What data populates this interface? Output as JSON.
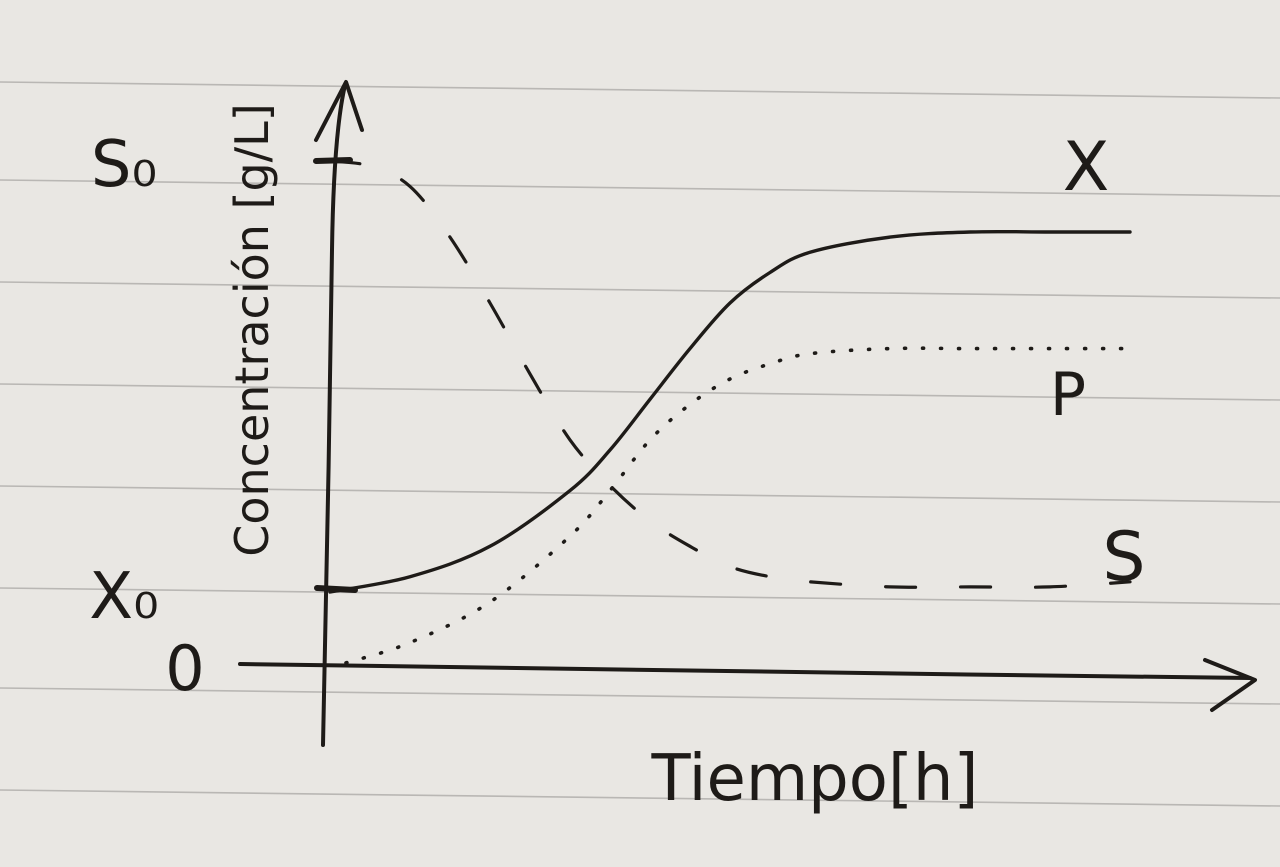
{
  "chart_data": {
    "type": "line",
    "xlabel": "Tiempo[h]",
    "ylabel": "Concentración [g/L]",
    "y_ticks": [
      {
        "label": "S₀",
        "value": 100
      },
      {
        "label": "X₀",
        "value": 15
      },
      {
        "label": "0",
        "value": 0
      }
    ],
    "xlim": [
      0,
      100
    ],
    "ylim": [
      0,
      100
    ],
    "grid": false,
    "legend": "inline-right",
    "series": [
      {
        "name": "X",
        "style": "solid",
        "x": [
          0,
          10,
          20,
          30,
          35,
          40,
          45,
          50,
          55,
          60,
          70,
          80,
          90,
          100
        ],
        "y": [
          15,
          18,
          24,
          35,
          43,
          53,
          63,
          72,
          78,
          82,
          85,
          86,
          86,
          86
        ]
      },
      {
        "name": "P",
        "style": "dotted",
        "x": [
          2,
          10,
          20,
          30,
          35,
          40,
          45,
          50,
          55,
          60,
          70,
          80,
          90,
          100
        ],
        "y": [
          1,
          5,
          13,
          26,
          35,
          45,
          52,
          57,
          60,
          62,
          63,
          63,
          63,
          63
        ]
      },
      {
        "name": "S",
        "style": "dashed",
        "x": [
          0,
          5,
          10,
          15,
          20,
          25,
          30,
          35,
          40,
          45,
          50,
          55,
          60,
          70,
          80,
          90,
          100
        ],
        "y": [
          100,
          99,
          95,
          85,
          72,
          58,
          45,
          36,
          29,
          24,
          20,
          18,
          17,
          16,
          16,
          16,
          17
        ]
      }
    ]
  }
}
